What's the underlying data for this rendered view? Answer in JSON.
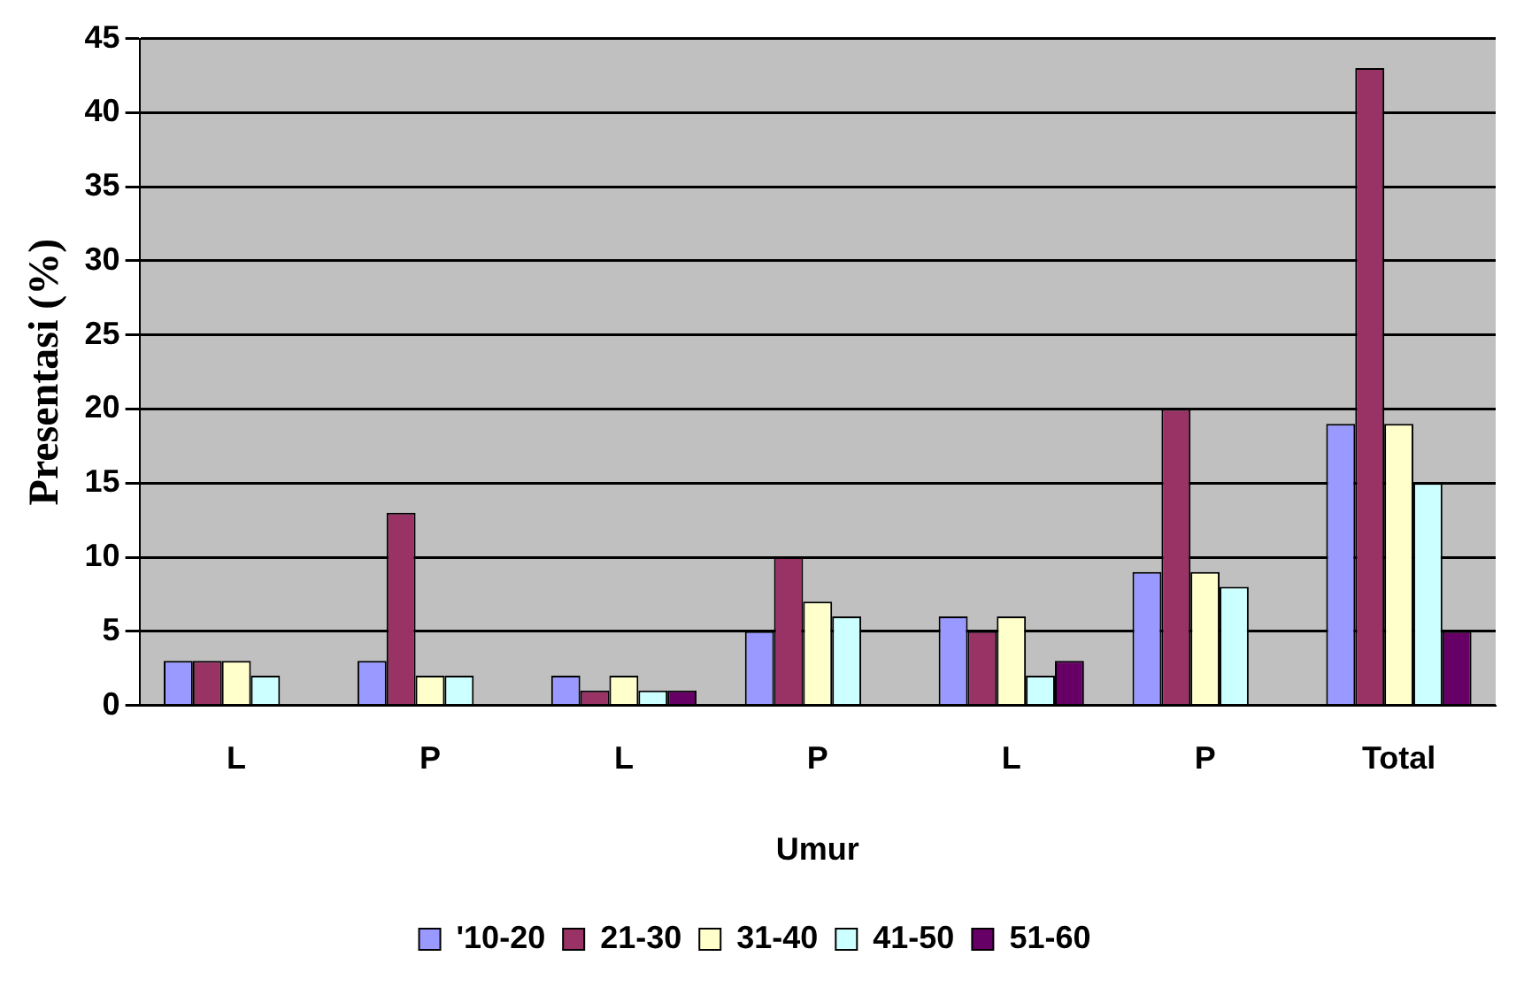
{
  "chart_data": {
    "type": "bar",
    "xlabel": "Umur",
    "ylabel": "Presentasi (%)",
    "categories": [
      "L",
      "P",
      "L",
      "P",
      "L",
      "P",
      "Total"
    ],
    "series": [
      {
        "name": "'10-20",
        "color": "#9999ff",
        "values": [
          3,
          3,
          2,
          5,
          6,
          9,
          19
        ]
      },
      {
        "name": "21-30",
        "color": "#993366",
        "values": [
          3,
          13,
          1,
          10,
          5,
          20,
          43
        ]
      },
      {
        "name": "31-40",
        "color": "#ffffcc",
        "values": [
          3,
          2,
          2,
          7,
          6,
          9,
          19
        ]
      },
      {
        "name": "41-50",
        "color": "#ccffff",
        "values": [
          2,
          2,
          1,
          6,
          2,
          8,
          15
        ]
      },
      {
        "name": "51-60",
        "color": "#660066",
        "values": [
          null,
          null,
          1,
          null,
          3,
          null,
          5
        ]
      }
    ],
    "ylim": [
      0,
      45
    ],
    "yticks": [
      0,
      5,
      10,
      15,
      20,
      25,
      30,
      35,
      40,
      45
    ],
    "grid": "y",
    "legend": "bottom"
  }
}
